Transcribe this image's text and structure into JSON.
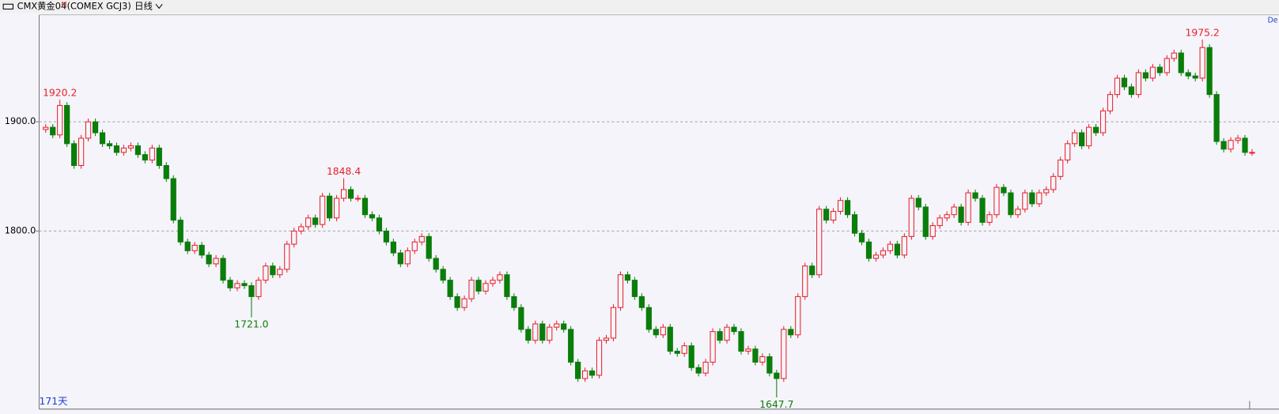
{
  "header": {
    "title": "CMX黄金04",
    "marker": "M",
    "code": "(COMEX GCJ3)",
    "period": "日线",
    "days": "171天",
    "corner": "De"
  },
  "chart_data": {
    "type": "candlestick",
    "up_color": "#e8202a",
    "down_color": "#0a7d0a",
    "ylim": [
      1637,
      1998
    ],
    "yticks": [
      {
        "value": 1800,
        "label": "1800.0"
      },
      {
        "value": 1900,
        "label": "1900.0"
      }
    ],
    "grid": true,
    "annotations": [
      {
        "value": 1920.2,
        "label": "1920.2"
      },
      {
        "value": 1721.0,
        "label": "1721.0"
      },
      {
        "value": 1848.4,
        "label": "1848.4"
      },
      {
        "value": 1647.7,
        "label": "1647.7"
      },
      {
        "value": 1975.2,
        "label": "1975.2"
      }
    ],
    "open": [
      1893,
      1895,
      1888,
      1915,
      1880,
      1860,
      1885,
      1900,
      1890,
      1880,
      1878,
      1872,
      1876,
      1878,
      1870,
      1865,
      1876,
      1860,
      1848,
      1810,
      1790,
      1782,
      1787,
      1778,
      1770,
      1775,
      1755,
      1748,
      1752,
      1750,
      1740,
      1755,
      1768,
      1760,
      1765,
      1788,
      1800,
      1804,
      1812,
      1806,
      1832,
      1812,
      1830,
      1838,
      1830,
      1830,
      1815,
      1812,
      1800,
      1790,
      1780,
      1770,
      1782,
      1790,
      1795,
      1775,
      1765,
      1755,
      1740,
      1730,
      1738,
      1755,
      1745,
      1752,
      1755,
      1760,
      1740,
      1730,
      1710,
      1700,
      1715,
      1700,
      1712,
      1715,
      1710,
      1680,
      1665,
      1672,
      1668,
      1700,
      1702,
      1730,
      1760,
      1755,
      1740,
      1730,
      1710,
      1705,
      1712,
      1690,
      1688,
      1695,
      1675,
      1670,
      1680,
      1708,
      1700,
      1712,
      1708,
      1690,
      1692,
      1680,
      1685,
      1670,
      1665,
      1710,
      1705,
      1740,
      1768,
      1760,
      1820,
      1810,
      1818,
      1828,
      1815,
      1798,
      1790,
      1775,
      1778,
      1782,
      1788,
      1778,
      1795,
      1830,
      1822,
      1795,
      1805,
      1812,
      1815,
      1822,
      1808,
      1835,
      1830,
      1808,
      1815,
      1840,
      1835,
      1815,
      1820,
      1835,
      1825,
      1835,
      1838,
      1850,
      1865,
      1880,
      1890,
      1878,
      1895,
      1890,
      1910,
      1925,
      1940,
      1932,
      1925,
      1945,
      1940,
      1950,
      1945,
      1958,
      1963,
      1945,
      1942,
      1940,
      1968,
      1925,
      1882,
      1875,
      1883,
      1885,
      1872
    ],
    "high": [
      1898,
      1898,
      1920.2,
      1918,
      1883,
      1888,
      1903,
      1903,
      1893,
      1883,
      1881,
      1879,
      1881,
      1881,
      1873,
      1879,
      1879,
      1863,
      1851,
      1813,
      1793,
      1790,
      1790,
      1781,
      1778,
      1778,
      1758,
      1755,
      1755,
      1753,
      1758,
      1771,
      1771,
      1768,
      1791,
      1803,
      1807,
      1815,
      1815,
      1835,
      1835,
      1833,
      1848.4,
      1841,
      1833,
      1833,
      1818,
      1815,
      1803,
      1793,
      1783,
      1785,
      1793,
      1798,
      1798,
      1778,
      1768,
      1758,
      1743,
      1741,
      1758,
      1758,
      1755,
      1758,
      1763,
      1763,
      1743,
      1733,
      1713,
      1718,
      1718,
      1715,
      1718,
      1718,
      1713,
      1683,
      1675,
      1675,
      1703,
      1705,
      1733,
      1763,
      1763,
      1758,
      1743,
      1733,
      1713,
      1715,
      1715,
      1693,
      1698,
      1698,
      1678,
      1683,
      1711,
      1711,
      1715,
      1715,
      1711,
      1695,
      1695,
      1688,
      1688,
      1673,
      1713,
      1713,
      1743,
      1771,
      1771,
      1823,
      1823,
      1821,
      1831,
      1831,
      1818,
      1801,
      1793,
      1781,
      1785,
      1791,
      1791,
      1798,
      1833,
      1833,
      1825,
      1808,
      1815,
      1818,
      1825,
      1825,
      1838,
      1838,
      1833,
      1818,
      1843,
      1843,
      1838,
      1823,
      1838,
      1838,
      1838,
      1841,
      1853,
      1868,
      1883,
      1893,
      1893,
      1898,
      1898,
      1913,
      1928,
      1943,
      1943,
      1935,
      1948,
      1948,
      1953,
      1953,
      1961,
      1966,
      1966,
      1948,
      1945,
      1975.2,
      1971,
      1928,
      1885,
      1886,
      1888,
      1888,
      1875
    ],
    "low": [
      1890,
      1885,
      1885,
      1877,
      1857,
      1857,
      1882,
      1887,
      1877,
      1875,
      1869,
      1869,
      1873,
      1867,
      1862,
      1862,
      1857,
      1845,
      1807,
      1787,
      1779,
      1779,
      1775,
      1767,
      1767,
      1752,
      1745,
      1745,
      1747,
      1721.0,
      1737,
      1752,
      1757,
      1757,
      1762,
      1785,
      1797,
      1801,
      1803,
      1803,
      1809,
      1809,
      1827,
      1827,
      1827,
      1812,
      1809,
      1797,
      1787,
      1777,
      1767,
      1767,
      1779,
      1787,
      1772,
      1762,
      1752,
      1737,
      1727,
      1727,
      1735,
      1742,
      1742,
      1749,
      1752,
      1737,
      1727,
      1707,
      1697,
      1697,
      1697,
      1697,
      1709,
      1707,
      1677,
      1662,
      1662,
      1665,
      1665,
      1697,
      1699,
      1727,
      1752,
      1737,
      1727,
      1707,
      1702,
      1702,
      1687,
      1685,
      1685,
      1672,
      1667,
      1667,
      1677,
      1697,
      1697,
      1705,
      1687,
      1687,
      1677,
      1677,
      1667,
      1647.7,
      1662,
      1702,
      1702,
      1737,
      1757,
      1757,
      1807,
      1807,
      1815,
      1812,
      1795,
      1787,
      1772,
      1772,
      1775,
      1779,
      1775,
      1775,
      1792,
      1819,
      1792,
      1792,
      1802,
      1809,
      1812,
      1805,
      1805,
      1827,
      1805,
      1805,
      1812,
      1832,
      1812,
      1812,
      1817,
      1822,
      1822,
      1832,
      1835,
      1847,
      1862,
      1877,
      1875,
      1875,
      1887,
      1887,
      1907,
      1922,
      1929,
      1922,
      1922,
      1937,
      1937,
      1942,
      1942,
      1955,
      1942,
      1939,
      1937,
      1937,
      1922,
      1879,
      1872,
      1872,
      1880,
      1869,
      1869
    ],
    "close": [
      1895,
      1888,
      1915,
      1880,
      1860,
      1885,
      1900,
      1890,
      1880,
      1878,
      1872,
      1876,
      1878,
      1870,
      1865,
      1876,
      1860,
      1848,
      1810,
      1790,
      1782,
      1787,
      1778,
      1770,
      1775,
      1755,
      1748,
      1752,
      1750,
      1740,
      1755,
      1768,
      1760,
      1765,
      1788,
      1800,
      1804,
      1812,
      1806,
      1832,
      1812,
      1830,
      1838,
      1830,
      1830,
      1815,
      1812,
      1800,
      1790,
      1780,
      1770,
      1782,
      1790,
      1795,
      1775,
      1765,
      1755,
      1740,
      1730,
      1738,
      1755,
      1745,
      1752,
      1755,
      1760,
      1740,
      1730,
      1710,
      1700,
      1715,
      1700,
      1712,
      1715,
      1710,
      1680,
      1665,
      1672,
      1668,
      1700,
      1702,
      1730,
      1760,
      1755,
      1740,
      1730,
      1710,
      1705,
      1712,
      1690,
      1688,
      1695,
      1675,
      1670,
      1680,
      1708,
      1700,
      1712,
      1708,
      1690,
      1692,
      1680,
      1685,
      1670,
      1665,
      1710,
      1705,
      1740,
      1768,
      1760,
      1820,
      1810,
      1818,
      1828,
      1815,
      1798,
      1790,
      1775,
      1778,
      1782,
      1788,
      1778,
      1795,
      1830,
      1822,
      1795,
      1805,
      1812,
      1815,
      1822,
      1808,
      1835,
      1830,
      1808,
      1815,
      1840,
      1835,
      1815,
      1820,
      1835,
      1825,
      1835,
      1838,
      1850,
      1865,
      1880,
      1890,
      1878,
      1895,
      1890,
      1910,
      1925,
      1940,
      1932,
      1925,
      1945,
      1940,
      1950,
      1945,
      1958,
      1963,
      1945,
      1942,
      1940,
      1968,
      1925,
      1882,
      1875,
      1883,
      1885,
      1872,
      1872
    ]
  }
}
